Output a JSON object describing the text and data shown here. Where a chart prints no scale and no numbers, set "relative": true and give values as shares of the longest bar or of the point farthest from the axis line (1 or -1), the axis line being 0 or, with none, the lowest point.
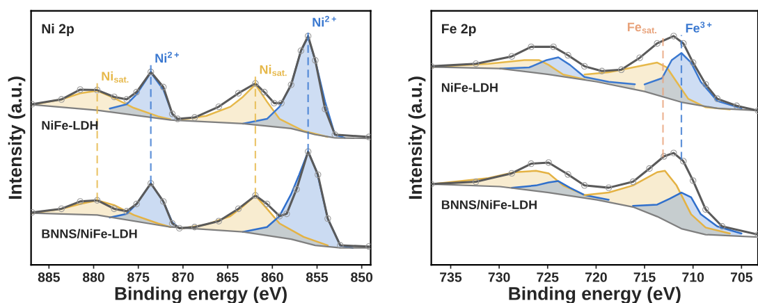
{
  "chart_data": [
    {
      "type": "line",
      "title": "Ni 2p",
      "xlabel": "Binding energy (eV)",
      "ylabel": "Intensity (a.u.)",
      "relative": true,
      "xlim": [
        887,
        849
      ],
      "xticks": [
        885,
        880,
        875,
        870,
        865,
        860,
        855,
        850
      ],
      "series": [
        {
          "type": "line",
          "color": "#7f7f7f",
          "x": [
            886.9,
            879.6,
            871.4,
            863.3,
            857.9,
            855.2,
            853.0,
            849.2
          ],
          "values": [
            0.7,
            0.676,
            0.633,
            0.617,
            0.596,
            0.569,
            0.555,
            0.553
          ]
        },
        {
          "type": "line",
          "color": "#e6b84a",
          "x": [
            886.9,
            883.6,
            881.5,
            879.6,
            877.7,
            875.5,
            872.8,
            871.4
          ],
          "values": [
            0.7,
            0.723,
            0.75,
            0.761,
            0.729,
            0.686,
            0.649,
            0.636
          ],
          "lower": [
            0.7,
            0.689,
            0.682,
            0.676,
            0.666,
            0.655,
            0.64,
            0.633
          ],
          "upper": [
            0.7,
            0.723,
            0.75,
            0.761,
            0.729,
            0.686,
            0.649,
            0.636
          ]
        },
        {
          "type": "line",
          "color": "#3a78d0",
          "x": [
            878.2,
            876.3,
            875.2,
            873.6,
            872.2,
            871.2,
            870.6
          ],
          "values": [
            0.683,
            0.702,
            0.745,
            0.84,
            0.766,
            0.66,
            0.636
          ],
          "lower": [
            0.669,
            0.659,
            0.653,
            0.645,
            0.637,
            0.633,
            0.631
          ],
          "upper": [
            0.683,
            0.702,
            0.745,
            0.84,
            0.766,
            0.66,
            0.636
          ]
        },
        {
          "type": "line",
          "color": "#e6b84a",
          "x": [
            870.1,
            867.4,
            864.7,
            863.3,
            861.9,
            860.6,
            859.2,
            856.5,
            853.8
          ],
          "values": [
            0.636,
            0.651,
            0.691,
            0.734,
            0.789,
            0.713,
            0.638,
            0.585,
            0.559
          ],
          "lower": [
            0.63,
            0.625,
            0.62,
            0.617,
            0.612,
            0.606,
            0.601,
            0.582,
            0.559
          ],
          "upper": [
            0.636,
            0.651,
            0.691,
            0.734,
            0.789,
            0.713,
            0.638,
            0.585,
            0.559
          ]
        },
        {
          "type": "line",
          "color": "#3a78d0",
          "x": [
            863.3,
            860.6,
            859.2,
            857.9,
            856.8,
            856.0,
            855.2,
            854.1,
            853.0,
            851.9
          ],
          "values": [
            0.617,
            0.638,
            0.691,
            0.787,
            0.936,
            0.995,
            0.894,
            0.713,
            0.569,
            0.555
          ],
          "lower": [
            0.617,
            0.606,
            0.601,
            0.596,
            0.585,
            0.577,
            0.569,
            0.562,
            0.555,
            0.554
          ],
          "upper": [
            0.617,
            0.638,
            0.691,
            0.787,
            0.936,
            0.995,
            0.894,
            0.713,
            0.569,
            0.555
          ]
        },
        {
          "type": "line",
          "color": "#5a5a5a",
          "marker": "circle",
          "x": [
            886.9,
            883.6,
            881.5,
            879.6,
            877.7,
            876.3,
            875.2,
            873.6,
            872.2,
            871.2,
            870.6,
            868.7,
            866.0,
            863.8,
            861.9,
            860.9,
            859.8,
            859.0,
            857.9,
            856.8,
            856.0,
            855.2,
            854.1,
            853.0,
            849.2
          ],
          "values": [
            0.702,
            0.723,
            0.766,
            0.764,
            0.734,
            0.723,
            0.755,
            0.843,
            0.777,
            0.66,
            0.638,
            0.644,
            0.691,
            0.75,
            0.793,
            0.755,
            0.707,
            0.707,
            0.787,
            0.936,
            1.0,
            0.894,
            0.681,
            0.569,
            0.559
          ]
        },
        {
          "type": "line",
          "color": "#7f7f7f",
          "x": [
            886.9,
            879.6,
            871.4,
            863.3,
            857.9,
            855.2,
            852.4,
            849.2
          ],
          "values": [
            0.226,
            0.218,
            0.165,
            0.144,
            0.112,
            0.085,
            0.074,
            0.074
          ]
        },
        {
          "type": "line",
          "color": "#e4b243",
          "x": [
            886.9,
            883.6,
            881.5,
            879.6,
            877.7,
            875.5,
            872.8,
            871.4
          ],
          "values": [
            0.226,
            0.245,
            0.266,
            0.282,
            0.261,
            0.218,
            0.181,
            0.165
          ],
          "lower": [
            0.226,
            0.222,
            0.22,
            0.218,
            0.206,
            0.192,
            0.174,
            0.165
          ],
          "upper": [
            0.226,
            0.245,
            0.266,
            0.282,
            0.261,
            0.218,
            0.181,
            0.165
          ]
        },
        {
          "type": "line",
          "color": "#2f6fcc",
          "x": [
            878.2,
            876.3,
            875.2,
            873.6,
            872.2,
            871.2,
            870.4
          ],
          "values": [
            0.207,
            0.223,
            0.266,
            0.356,
            0.277,
            0.186,
            0.16
          ],
          "lower": [
            0.207,
            0.197,
            0.19,
            0.179,
            0.17,
            0.164,
            0.16
          ],
          "upper": [
            0.207,
            0.223,
            0.266,
            0.356,
            0.277,
            0.186,
            0.16
          ]
        },
        {
          "type": "line",
          "color": "#e4b243",
          "x": [
            870.1,
            867.4,
            864.7,
            863.3,
            861.9,
            860.6,
            859.2,
            856.5,
            853.8
          ],
          "values": [
            0.16,
            0.176,
            0.213,
            0.255,
            0.303,
            0.245,
            0.181,
            0.122,
            0.085
          ],
          "lower": [
            0.16,
            0.155,
            0.148,
            0.144,
            0.136,
            0.128,
            0.12,
            0.098,
            0.08
          ],
          "upper": [
            0.16,
            0.176,
            0.213,
            0.255,
            0.303,
            0.245,
            0.181,
            0.122,
            0.085
          ]
        },
        {
          "type": "line",
          "color": "#2f6fcc",
          "x": [
            863.3,
            860.6,
            859.2,
            857.9,
            857.0,
            856.0,
            855.0,
            853.8,
            852.4,
            851.0
          ],
          "values": [
            0.144,
            0.165,
            0.213,
            0.309,
            0.394,
            0.495,
            0.404,
            0.202,
            0.085,
            0.074
          ],
          "lower": [
            0.144,
            0.128,
            0.12,
            0.112,
            0.103,
            0.093,
            0.084,
            0.08,
            0.074,
            0.074
          ],
          "upper": [
            0.144,
            0.165,
            0.213,
            0.309,
            0.394,
            0.495,
            0.404,
            0.202,
            0.085,
            0.074
          ]
        },
        {
          "type": "line",
          "color": "#5a5a5a",
          "marker": "circle",
          "x": [
            886.9,
            883.6,
            881.5,
            879.6,
            877.7,
            876.3,
            875.2,
            873.6,
            872.2,
            871.2,
            870.4,
            868.7,
            866.0,
            863.8,
            861.9,
            860.6,
            859.2,
            858.4,
            857.3,
            856.0,
            854.9,
            853.8,
            852.4,
            849.2
          ],
          "values": [
            0.229,
            0.245,
            0.277,
            0.282,
            0.245,
            0.234,
            0.266,
            0.356,
            0.277,
            0.181,
            0.16,
            0.165,
            0.191,
            0.245,
            0.303,
            0.266,
            0.213,
            0.223,
            0.33,
            0.495,
            0.394,
            0.202,
            0.085,
            0.08
          ]
        }
      ],
      "ref_lines": [
        {
          "axis": "x",
          "value": 879.6,
          "label": "Ni$_{sat.}$",
          "color": "#e6b84a",
          "line_style": "dashed"
        },
        {
          "axis": "x",
          "value": 873.6,
          "label": "Ni$^{2+}$",
          "color": "#3a78d0",
          "line_style": "dashed"
        },
        {
          "axis": "x",
          "value": 861.9,
          "label": "Ni$_{sat.}$",
          "color": "#e6b84a",
          "line_style": "dashed"
        },
        {
          "axis": "x",
          "value": 856.0,
          "label": "Ni$^{2+}$",
          "color": "#3a78d0",
          "line_style": "dashed"
        }
      ],
      "annotations": [
        "NiFe-LDH",
        "BNNS/NiFe-LDH"
      ]
    },
    {
      "type": "line",
      "title": "Fe 2p",
      "xlabel": "Binding energy (eV)",
      "ylabel": "Intensity (a.u.)",
      "relative": true,
      "xlim": [
        737,
        703.3
      ],
      "xticks": [
        735,
        730,
        725,
        720,
        715,
        710,
        705
      ],
      "series": [
        {
          "type": "line",
          "color": "#7f7f7f",
          "x": [
            737.0,
            729.9,
            724.9,
            719.9,
            715.0,
            711.2,
            707.5,
            703.3
          ],
          "values": [
            0.865,
            0.858,
            0.832,
            0.8,
            0.758,
            0.711,
            0.684,
            0.674
          ]
        },
        {
          "type": "line",
          "color": "#e6b84a",
          "x": [
            737.0,
            731.1,
            727.4,
            725.9,
            724.9,
            723.4,
            721.2
          ],
          "values": [
            0.865,
            0.879,
            0.895,
            0.895,
            0.874,
            0.832,
            0.811
          ],
          "lower": [
            0.865,
            0.859,
            0.845,
            0.837,
            0.832,
            0.822,
            0.808
          ],
          "upper": [
            0.865,
            0.879,
            0.895,
            0.895,
            0.874,
            0.832,
            0.811
          ]
        },
        {
          "type": "line",
          "color": "#3a78d0",
          "x": [
            729.9,
            726.9,
            725.1,
            723.9,
            722.7,
            721.2,
            718.7,
            716.0
          ],
          "values": [
            0.858,
            0.863,
            0.895,
            0.907,
            0.874,
            0.821,
            0.8,
            0.789
          ],
          "lower": [
            0.858,
            0.842,
            0.833,
            0.826,
            0.818,
            0.808,
            0.79,
            0.767
          ],
          "upper": [
            0.858,
            0.863,
            0.895,
            0.907,
            0.874,
            0.821,
            0.8,
            0.789
          ]
        },
        {
          "type": "line",
          "color": "#e6b84a",
          "x": [
            721.2,
            718.7,
            716.2,
            713.7,
            712.7,
            711.7,
            710.5,
            708.7,
            706.2
          ],
          "values": [
            0.832,
            0.842,
            0.863,
            0.884,
            0.863,
            0.8,
            0.726,
            0.689,
            0.679
          ],
          "lower": [
            0.808,
            0.79,
            0.768,
            0.742,
            0.73,
            0.717,
            0.706,
            0.693,
            0.679
          ],
          "upper": [
            0.832,
            0.842,
            0.863,
            0.884,
            0.863,
            0.8,
            0.726,
            0.689,
            0.679
          ]
        },
        {
          "type": "line",
          "color": "#3a78d0",
          "x": [
            715.0,
            713.2,
            712.2,
            711.2,
            710.2,
            709.2,
            707.5,
            705.0
          ],
          "values": [
            0.789,
            0.816,
            0.895,
            0.926,
            0.884,
            0.8,
            0.716,
            0.684
          ],
          "lower": [
            0.758,
            0.736,
            0.723,
            0.711,
            0.704,
            0.696,
            0.684,
            0.678
          ],
          "upper": [
            0.789,
            0.816,
            0.895,
            0.926,
            0.884,
            0.8,
            0.716,
            0.684
          ]
        },
        {
          "type": "line",
          "color": "#5a5a5a",
          "marker": "circle",
          "x": [
            737.0,
            732.4,
            728.7,
            726.7,
            724.4,
            722.9,
            721.2,
            719.4,
            717.4,
            715.5,
            713.7,
            712.0,
            711.0,
            710.0,
            708.7,
            707.5,
            705.5,
            703.3
          ],
          "values": [
            0.868,
            0.879,
            0.911,
            0.953,
            0.953,
            0.916,
            0.868,
            0.847,
            0.853,
            0.905,
            0.968,
            1.0,
            0.968,
            0.884,
            0.789,
            0.726,
            0.695,
            0.674
          ]
        },
        {
          "type": "line",
          "color": "#7f7f7f",
          "x": [
            737.0,
            729.9,
            724.9,
            719.9,
            716.2,
            713.7,
            711.2,
            708.7,
            703.3
          ],
          "values": [
            0.353,
            0.342,
            0.316,
            0.284,
            0.253,
            0.211,
            0.158,
            0.132,
            0.121
          ]
        },
        {
          "type": "line",
          "color": "#e4b243",
          "x": [
            737.0,
            731.1,
            728.4,
            726.2,
            724.9,
            723.4,
            721.2
          ],
          "values": [
            0.353,
            0.379,
            0.405,
            0.411,
            0.4,
            0.347,
            0.305
          ],
          "lower": [
            0.353,
            0.344,
            0.334,
            0.323,
            0.316,
            0.306,
            0.292
          ],
          "upper": [
            0.353,
            0.379,
            0.405,
            0.411,
            0.4,
            0.347,
            0.305
          ]
        },
        {
          "type": "line",
          "color": "#2f6fcc",
          "x": [
            728.7,
            726.2,
            724.9,
            723.9,
            722.7,
            721.2,
            718.7
          ],
          "values": [
            0.337,
            0.347,
            0.36,
            0.366,
            0.337,
            0.305,
            0.284
          ],
          "lower": [
            0.336,
            0.323,
            0.316,
            0.31,
            0.302,
            0.292,
            0.274
          ],
          "upper": [
            0.337,
            0.347,
            0.36,
            0.366,
            0.337,
            0.305,
            0.284
          ]
        },
        {
          "type": "line",
          "color": "#e4b243",
          "x": [
            721.2,
            718.7,
            716.2,
            713.7,
            712.9,
            711.7,
            710.2,
            708.7,
            706.2
          ],
          "values": [
            0.305,
            0.316,
            0.347,
            0.405,
            0.411,
            0.347,
            0.221,
            0.163,
            0.137
          ],
          "lower": [
            0.292,
            0.274,
            0.253,
            0.211,
            0.194,
            0.169,
            0.148,
            0.132,
            0.127
          ],
          "upper": [
            0.305,
            0.316,
            0.347,
            0.405,
            0.411,
            0.347,
            0.221,
            0.163,
            0.137
          ]
        },
        {
          "type": "line",
          "color": "#2f6fcc",
          "x": [
            716.2,
            713.7,
            712.4,
            711.2,
            710.2,
            709.2,
            707.5,
            705.0
          ],
          "values": [
            0.258,
            0.263,
            0.289,
            0.316,
            0.295,
            0.221,
            0.168,
            0.137
          ],
          "lower": [
            0.253,
            0.211,
            0.183,
            0.158,
            0.148,
            0.137,
            0.13,
            0.125
          ],
          "upper": [
            0.258,
            0.263,
            0.289,
            0.316,
            0.295,
            0.221,
            0.168,
            0.137
          ]
        },
        {
          "type": "line",
          "color": "#5a5a5a",
          "marker": "circle",
          "x": [
            737.0,
            732.4,
            728.7,
            726.7,
            724.9,
            722.9,
            721.2,
            718.7,
            716.2,
            714.5,
            713.0,
            712.0,
            711.0,
            710.0,
            708.7,
            707.0,
            703.3
          ],
          "values": [
            0.353,
            0.363,
            0.4,
            0.442,
            0.447,
            0.395,
            0.347,
            0.337,
            0.363,
            0.421,
            0.474,
            0.489,
            0.453,
            0.368,
            0.242,
            0.168,
            0.132
          ]
        }
      ],
      "ref_lines": [
        {
          "axis": "x",
          "value": 713.1,
          "label": "Fe$_{sat.}$",
          "color": "#e8a27a",
          "line_style": "dashed"
        },
        {
          "axis": "x",
          "value": 711.2,
          "label": "Fe$^{3+}$",
          "color": "#3a78d0",
          "line_style": "dashed"
        }
      ],
      "annotations": [
        "NiFe-LDH",
        "BNNS/NiFe-LDH"
      ]
    }
  ]
}
